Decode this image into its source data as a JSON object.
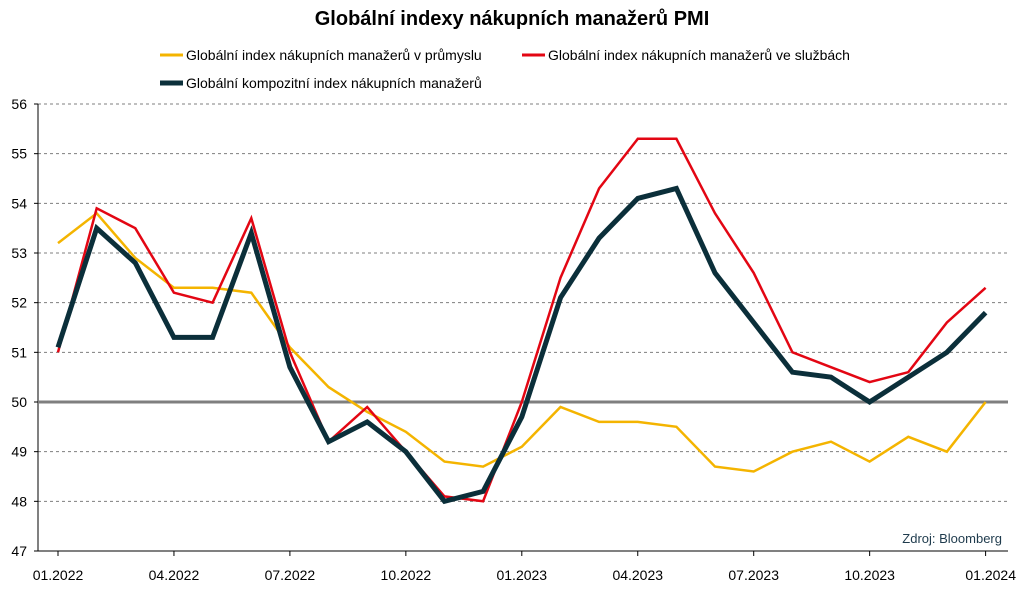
{
  "chart_data": {
    "type": "line",
    "title": "Globální indexy nákupních manažerů PMI",
    "source": "Zdroj: Bloomberg",
    "x": [
      "01.2022",
      "02.2022",
      "03.2022",
      "04.2022",
      "05.2022",
      "06.2022",
      "07.2022",
      "08.2022",
      "09.2022",
      "10.2022",
      "11.2022",
      "12.2022",
      "01.2023",
      "02.2023",
      "03.2023",
      "04.2023",
      "05.2023",
      "06.2023",
      "07.2023",
      "08.2023",
      "09.2023",
      "10.2023",
      "11.2023",
      "12.2023",
      "01.2024"
    ],
    "x_tick_labels": [
      "01.2022",
      "04.2022",
      "07.2022",
      "10.2022",
      "01.2023",
      "04.2023",
      "07.2023",
      "10.2023",
      "01.2024"
    ],
    "ylim": [
      47,
      56
    ],
    "y_ticks": [
      47,
      48,
      49,
      50,
      51,
      52,
      53,
      54,
      55,
      56
    ],
    "reference_line": 50,
    "grid": true,
    "legend_position": "top",
    "series": [
      {
        "name": "Globální index nákupních manažerů v průmyslu",
        "color": "#f4b400",
        "width": 2.5,
        "values": [
          53.2,
          53.8,
          52.9,
          52.3,
          52.3,
          52.2,
          51.1,
          50.3,
          49.8,
          49.4,
          48.8,
          48.7,
          49.1,
          49.9,
          49.6,
          49.6,
          49.5,
          48.7,
          48.6,
          49.0,
          49.2,
          48.8,
          49.3,
          49.0,
          50.0
        ]
      },
      {
        "name": "Globální index nákupních manažerů ve službách",
        "color": "#e30613",
        "width": 2.5,
        "values": [
          51.0,
          53.9,
          53.5,
          52.2,
          52.0,
          53.7,
          51.0,
          49.2,
          49.9,
          49.0,
          48.1,
          48.0,
          50.0,
          52.5,
          54.3,
          55.3,
          55.3,
          53.8,
          52.6,
          51.0,
          50.7,
          50.4,
          50.6,
          51.6,
          52.3
        ]
      },
      {
        "name": "Globální kompozitní index nákupních manažerů",
        "color": "#0b2f3a",
        "width": 5,
        "values": [
          51.1,
          53.5,
          52.8,
          51.3,
          51.3,
          53.4,
          50.7,
          49.2,
          49.6,
          49.0,
          48.0,
          48.2,
          49.7,
          52.1,
          53.3,
          54.1,
          54.3,
          52.6,
          51.6,
          50.6,
          50.5,
          50.0,
          50.5,
          51.0,
          51.8
        ]
      }
    ]
  }
}
